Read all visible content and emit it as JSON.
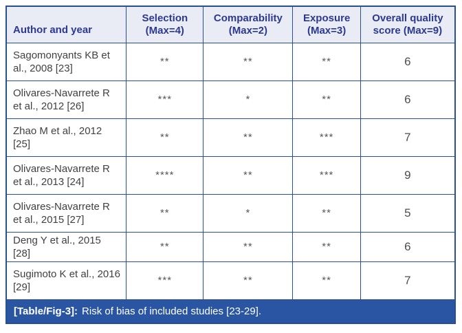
{
  "colors": {
    "border_navy": "#27508f",
    "header_bg": "#e9ebf5",
    "header_text": "#2b3990",
    "caption_bg": "#2a55a3",
    "caption_text": "#ffffff",
    "body_text": "#414042",
    "star_text": "#58595b"
  },
  "table": {
    "headers": [
      "Author and year",
      "Selection (Max=4)",
      "Comparability (Max=2)",
      "Exposure (Max=3)",
      "Overall quality score (Max=9)"
    ],
    "rows": [
      {
        "author": "Sagomonyants KB et al., 2008 [23]",
        "selection": "**",
        "comparability": "**",
        "exposure": "**",
        "score": "6"
      },
      {
        "author": "Olivares-Navarrete R et al., 2012 [26]",
        "selection": "***",
        "comparability": "*",
        "exposure": "**",
        "score": "6"
      },
      {
        "author": "Zhao M et al., 2012 [25]",
        "selection": "**",
        "comparability": "**",
        "exposure": "***",
        "score": "7"
      },
      {
        "author": "Olivares-Navarrete R et al., 2013 [24]",
        "selection": "****",
        "comparability": "**",
        "exposure": "***",
        "score": "9"
      },
      {
        "author": "Olivares-Navarrete R et al., 2015 [27]",
        "selection": "**",
        "comparability": "*",
        "exposure": "**",
        "score": "5"
      },
      {
        "author": "Deng Y et al., 2015 [28]",
        "selection": "**",
        "comparability": "**",
        "exposure": "**",
        "score": "6"
      },
      {
        "author": "Sugimoto K et al., 2016 [29]",
        "selection": "***",
        "comparability": "**",
        "exposure": "**",
        "score": "7"
      }
    ]
  },
  "caption": {
    "label": "[Table/Fig-3]:",
    "text": "Risk of bias of included studies [23-29]."
  }
}
